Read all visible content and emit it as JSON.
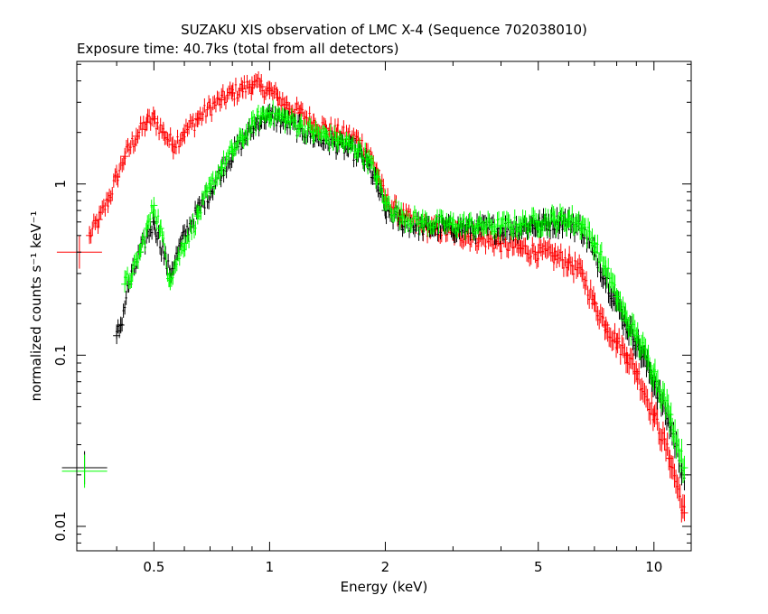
{
  "chart_data": {
    "type": "scatter",
    "title": "SUZAKU XIS observation of LMC X-4 (Sequence 702038010)",
    "subtitle": "Exposure time: 40.7ks (total from all detectors)",
    "xlabel": "Energy (keV)",
    "ylabel": "normalized counts s⁻¹ keV⁻¹",
    "xscale": "log",
    "yscale": "log",
    "xlim": [
      0.315,
      12.5
    ],
    "ylim": [
      0.0072,
      5.2
    ],
    "xticks": [
      {
        "value": 0.5,
        "label": "0.5"
      },
      {
        "value": 1,
        "label": "1"
      },
      {
        "value": 2,
        "label": "2"
      },
      {
        "value": 5,
        "label": "5"
      },
      {
        "value": 10,
        "label": "10"
      }
    ],
    "yticks": [
      {
        "value": 0.01,
        "label": "0.01"
      },
      {
        "value": 0.1,
        "label": "0.1"
      },
      {
        "value": 1,
        "label": "1"
      }
    ],
    "series": [
      {
        "color": "#ff0000",
        "x": [
          0.32,
          0.34,
          0.36,
          0.38,
          0.4,
          0.42,
          0.45,
          0.48,
          0.5,
          0.53,
          0.56,
          0.6,
          0.65,
          0.7,
          0.75,
          0.8,
          0.85,
          0.9,
          0.95,
          1.0,
          1.05,
          1.1,
          1.2,
          1.3,
          1.4,
          1.5,
          1.6,
          1.7,
          1.8,
          1.9,
          2.0,
          2.2,
          2.5,
          3.0,
          3.5,
          4.0,
          4.5,
          5.0,
          5.5,
          6.0,
          6.5,
          7.0,
          7.5,
          8.0,
          8.5,
          9.0,
          10.0,
          11.0,
          12.0
        ],
        "y": [
          0.4,
          0.5,
          0.62,
          0.8,
          1.1,
          1.45,
          1.9,
          2.3,
          2.4,
          2.0,
          1.7,
          2.0,
          2.4,
          2.8,
          3.1,
          3.4,
          3.6,
          3.8,
          3.7,
          3.5,
          3.2,
          2.9,
          2.6,
          2.3,
          2.1,
          2.0,
          1.9,
          1.8,
          1.55,
          1.2,
          0.82,
          0.66,
          0.56,
          0.52,
          0.48,
          0.45,
          0.42,
          0.4,
          0.38,
          0.35,
          0.3,
          0.2,
          0.15,
          0.12,
          0.1,
          0.08,
          0.045,
          0.025,
          0.012
        ]
      },
      {
        "color": "#000000",
        "x": [
          0.33,
          0.4,
          0.41,
          0.43,
          0.46,
          0.5,
          0.55,
          0.6,
          0.65,
          0.7,
          0.75,
          0.8,
          0.85,
          0.9,
          0.95,
          1.0,
          1.1,
          1.2,
          1.3,
          1.4,
          1.5,
          1.6,
          1.7,
          1.8,
          1.9,
          2.0,
          2.2,
          2.5,
          3.0,
          3.5,
          4.0,
          4.5,
          5.0,
          5.5,
          6.0,
          6.5,
          7.0,
          7.5,
          8.0,
          8.5,
          9.0,
          10.0,
          11.0,
          12.0
        ],
        "y": [
          0.022,
          0.13,
          0.15,
          0.26,
          0.4,
          0.6,
          0.3,
          0.5,
          0.7,
          0.9,
          1.2,
          1.5,
          1.8,
          2.1,
          2.4,
          2.5,
          2.3,
          2.1,
          1.9,
          1.8,
          1.7,
          1.6,
          1.5,
          1.3,
          1.0,
          0.7,
          0.6,
          0.56,
          0.55,
          0.55,
          0.55,
          0.56,
          0.58,
          0.6,
          0.6,
          0.55,
          0.4,
          0.28,
          0.2,
          0.15,
          0.12,
          0.07,
          0.04,
          0.02
        ]
      },
      {
        "color": "#00ff00",
        "x": [
          0.33,
          0.42,
          0.44,
          0.46,
          0.48,
          0.5,
          0.52,
          0.55,
          0.6,
          0.65,
          0.7,
          0.75,
          0.8,
          0.85,
          0.9,
          0.95,
          1.0,
          1.1,
          1.2,
          1.3,
          1.4,
          1.5,
          1.6,
          1.7,
          1.8,
          1.9,
          2.0,
          2.2,
          2.5,
          3.0,
          3.5,
          4.0,
          4.5,
          5.0,
          5.5,
          6.0,
          6.5,
          7.0,
          7.5,
          8.0,
          8.5,
          9.0,
          10.0,
          11.0,
          12.0
        ],
        "y": [
          0.021,
          0.26,
          0.3,
          0.4,
          0.55,
          0.75,
          0.55,
          0.28,
          0.45,
          0.65,
          0.95,
          1.25,
          1.55,
          1.85,
          2.2,
          2.5,
          2.6,
          2.4,
          2.2,
          2.0,
          1.9,
          1.8,
          1.7,
          1.6,
          1.4,
          1.1,
          0.78,
          0.65,
          0.6,
          0.58,
          0.57,
          0.57,
          0.58,
          0.6,
          0.62,
          0.62,
          0.58,
          0.45,
          0.32,
          0.22,
          0.16,
          0.13,
          0.08,
          0.045,
          0.022
        ]
      }
    ]
  }
}
